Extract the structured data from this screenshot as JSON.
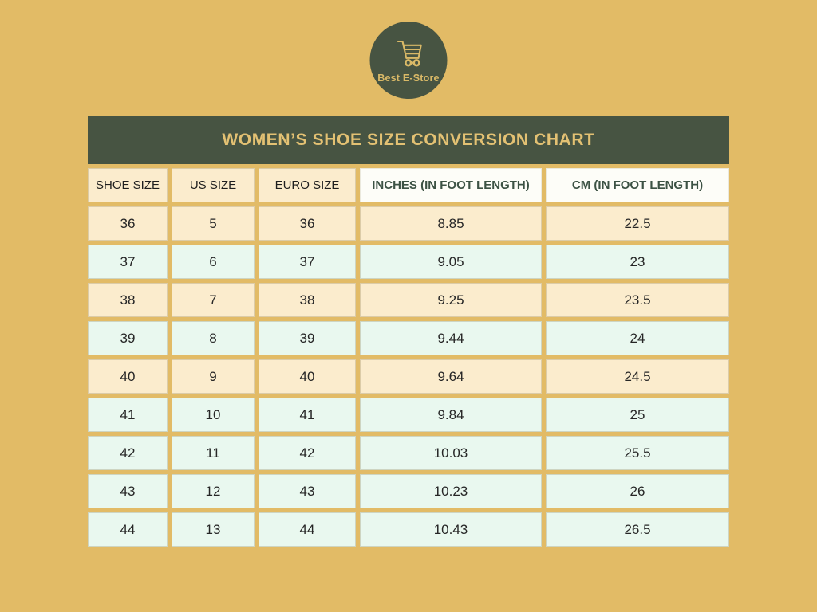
{
  "colors": {
    "background": "#e2bb66",
    "dark_green": "#475442",
    "gold_title_text": "#e3c173",
    "logo_gold": "#d9b967",
    "cream_row": "#fbeccd",
    "mint_row": "#e9f8ef",
    "header_white": "#fdfdf8",
    "header_green_text": "#3c5244",
    "data_text": "#262626"
  },
  "logo": {
    "brand": "Best E-Store",
    "icon": "shopping-cart-icon"
  },
  "title": "WOMEN’S SHOE SIZE CONVERSION CHART",
  "table": {
    "columns": [
      "SHOE SIZE",
      "US SIZE",
      "EURO SIZE",
      "INCHES (IN FOOT LENGTH)",
      "CM (IN FOOT LENGTH)"
    ],
    "rows": [
      {
        "shade": "cream",
        "values": [
          "36",
          "5",
          "36",
          "8.85",
          "22.5"
        ]
      },
      {
        "shade": "mint",
        "values": [
          "37",
          "6",
          "37",
          "9.05",
          "23"
        ]
      },
      {
        "shade": "cream",
        "values": [
          "38",
          "7",
          "38",
          "9.25",
          "23.5"
        ]
      },
      {
        "shade": "mint",
        "values": [
          "39",
          "8",
          "39",
          "9.44",
          "24"
        ]
      },
      {
        "shade": "cream",
        "values": [
          "40",
          "9",
          "40",
          "9.64",
          "24.5"
        ]
      },
      {
        "shade": "mint",
        "values": [
          "41",
          "10",
          "41",
          "9.84",
          "25"
        ]
      },
      {
        "shade": "mint",
        "values": [
          "42",
          "11",
          "42",
          "10.03",
          "25.5"
        ]
      },
      {
        "shade": "mint",
        "values": [
          "43",
          "12",
          "43",
          "10.23",
          "26"
        ]
      },
      {
        "shade": "mint",
        "values": [
          "44",
          "13",
          "44",
          "10.43",
          "26.5"
        ]
      }
    ]
  },
  "chart_data": {
    "type": "table",
    "title": "WOMEN’S SHOE SIZE CONVERSION CHART",
    "columns": [
      "SHOE SIZE",
      "US SIZE",
      "EURO SIZE",
      "INCHES (IN FOOT LENGTH)",
      "CM (IN FOOT LENGTH)"
    ],
    "rows": [
      [
        36,
        5,
        36,
        8.85,
        22.5
      ],
      [
        37,
        6,
        37,
        9.05,
        23
      ],
      [
        38,
        7,
        38,
        9.25,
        23.5
      ],
      [
        39,
        8,
        39,
        9.44,
        24
      ],
      [
        40,
        9,
        40,
        9.64,
        24.5
      ],
      [
        41,
        10,
        41,
        9.84,
        25
      ],
      [
        42,
        11,
        42,
        10.03,
        25.5
      ],
      [
        43,
        12,
        43,
        10.23,
        26
      ],
      [
        44,
        13,
        44,
        10.43,
        26.5
      ]
    ]
  }
}
